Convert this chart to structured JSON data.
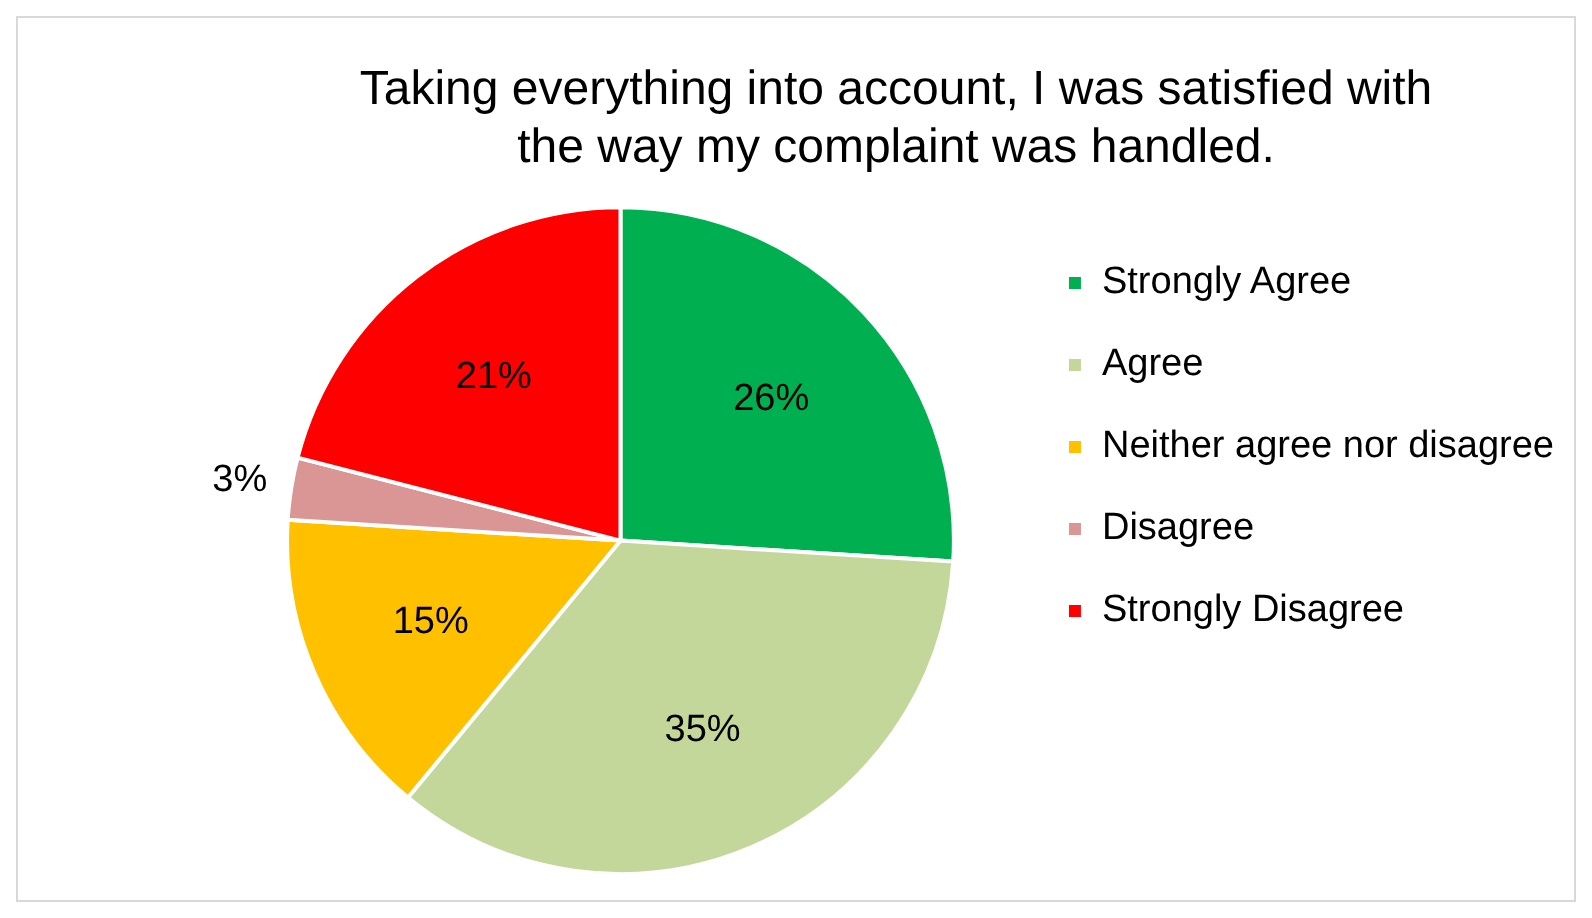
{
  "chart_data": {
    "type": "pie",
    "title": "Taking everything into account, I was satisfied with the way my complaint was handled.",
    "categories": [
      "Strongly Agree",
      "Agree",
      "Neither agree nor disagree",
      "Disagree",
      "Strongly Disagree"
    ],
    "values": [
      26,
      35,
      15,
      3,
      21
    ],
    "colors": [
      "#00b050",
      "#c4d79b",
      "#ffc000",
      "#d99694",
      "#ff0000"
    ],
    "value_labels": [
      "26%",
      "35%",
      "15%",
      "3%",
      "21%"
    ],
    "legend": "right"
  }
}
